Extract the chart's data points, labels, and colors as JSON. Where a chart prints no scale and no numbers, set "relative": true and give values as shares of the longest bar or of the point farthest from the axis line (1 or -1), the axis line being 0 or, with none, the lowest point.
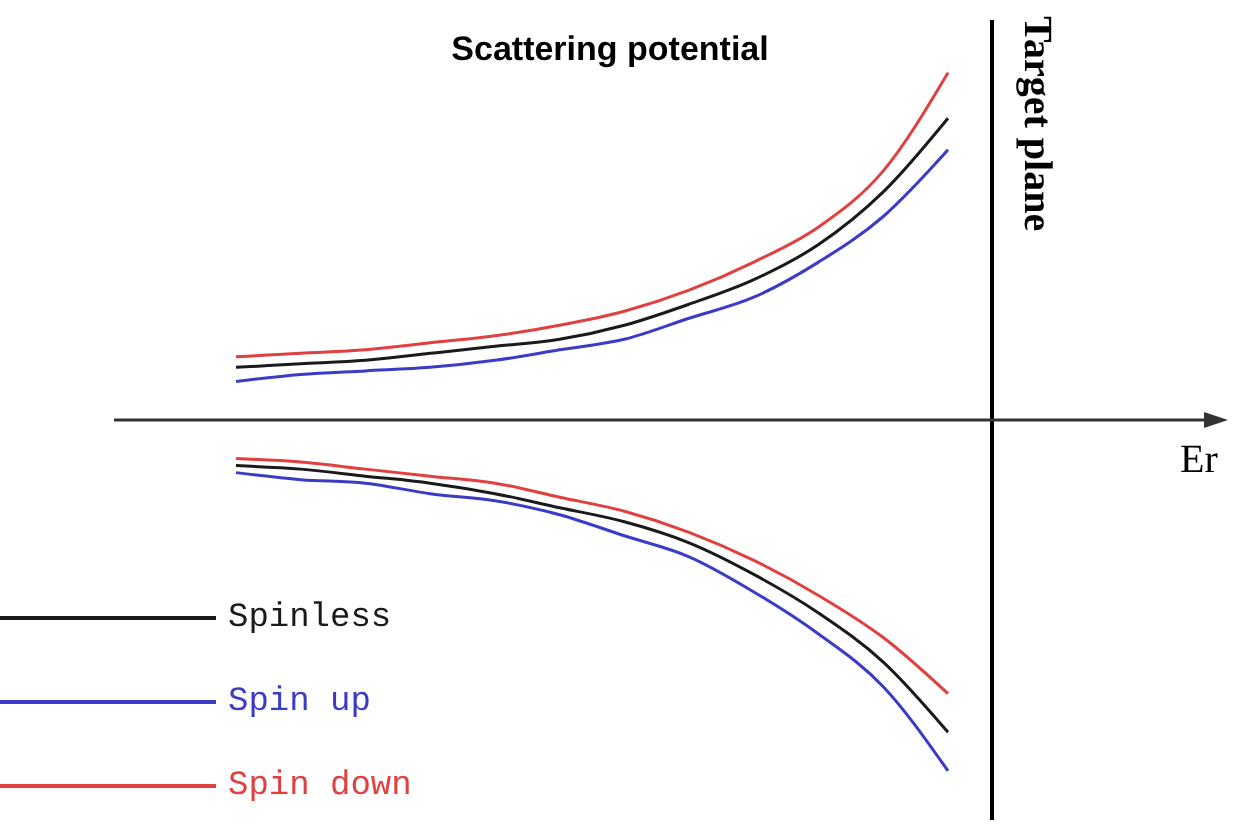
{
  "chart_data": {
    "type": "line",
    "title": "Scattering potential",
    "xlabel": "Er",
    "ylabel": "Target plane",
    "relative": true,
    "legend": "bottom left",
    "categories": [
      null,
      null,
      null,
      null,
      null,
      null,
      null,
      null,
      null,
      null,
      null,
      null
    ],
    "series": [
      {
        "name": "Spinless",
        "color": "#1a1a1a",
        "values": [
          0.15,
          0.16,
          0.17,
          0.19,
          0.21,
          0.23,
          0.27,
          0.33,
          0.4,
          0.5,
          0.65,
          0.86
        ]
      },
      {
        "name": "Spin up",
        "color": "#3b3bc8",
        "values": [
          0.11,
          0.13,
          0.14,
          0.15,
          0.17,
          0.2,
          0.23,
          0.29,
          0.35,
          0.45,
          0.58,
          0.77
        ]
      },
      {
        "name": "Spin down",
        "color": "#e04040",
        "values": [
          0.18,
          0.19,
          0.2,
          0.22,
          0.24,
          0.27,
          0.31,
          0.37,
          0.45,
          0.55,
          0.71,
          0.99
        ]
      },
      {
        "color": "#1a1a1a",
        "values": [
          -0.13,
          -0.14,
          -0.16,
          -0.18,
          -0.21,
          -0.25,
          -0.29,
          -0.35,
          -0.44,
          -0.55,
          -0.69,
          -0.89
        ]
      },
      {
        "color": "#3b3bc8",
        "values": [
          -0.15,
          -0.17,
          -0.18,
          -0.21,
          -0.23,
          -0.27,
          -0.33,
          -0.39,
          -0.49,
          -0.61,
          -0.76,
          -1
        ]
      },
      {
        "color": "#e04040",
        "values": [
          -0.11,
          -0.12,
          -0.14,
          -0.16,
          -0.18,
          -0.22,
          -0.26,
          -0.32,
          -0.4,
          -0.5,
          -0.62,
          -0.78
        ]
      }
    ]
  }
}
